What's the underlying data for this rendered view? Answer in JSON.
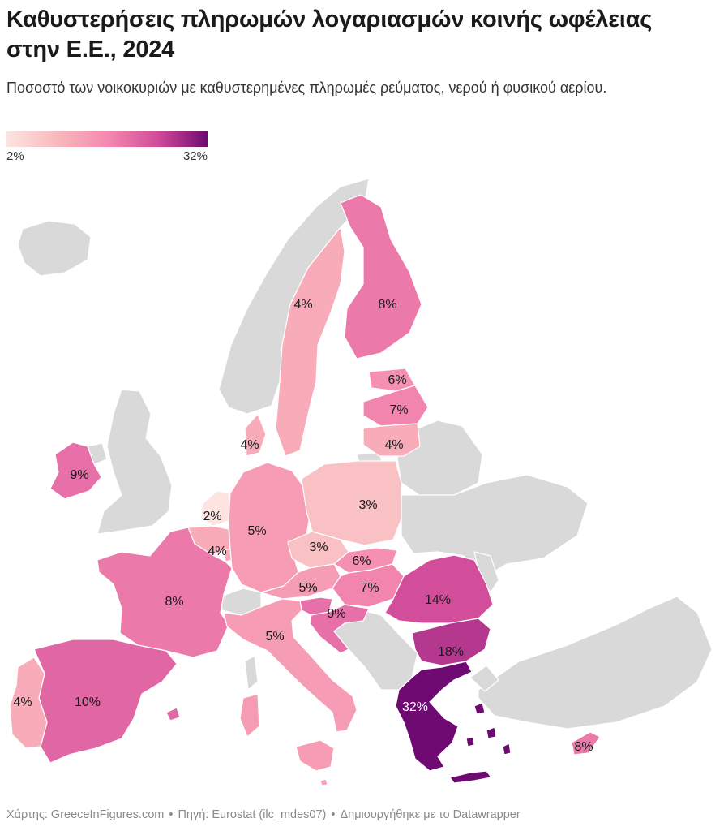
{
  "header": {
    "title": "Καθυστερήσεις πληρωμών λογαριασμών κοινής ωφέλειας στην Ε.Ε., 2024",
    "subtitle": "Ποσοστό των νοικοκυριών με καθυστερημένες πληρωμές ρεύματος, νερού ή φυσικού αερίου."
  },
  "legend": {
    "min_label": "2%",
    "max_label": "32%",
    "min_value": 2,
    "max_value": 32,
    "colors": [
      "#fde4e1",
      "#f9b9bd",
      "#f48ab0",
      "#d24c9a",
      "#6e0a72"
    ]
  },
  "map": {
    "no_data_color": "#d9d9d9",
    "countries": [
      {
        "id": "SE",
        "value": 4,
        "label": "4%"
      },
      {
        "id": "FI",
        "value": 8,
        "label": "8%"
      },
      {
        "id": "EE",
        "value": 6,
        "label": "6%"
      },
      {
        "id": "LV",
        "value": 7,
        "label": "7%"
      },
      {
        "id": "LT",
        "value": 4,
        "label": "4%"
      },
      {
        "id": "DK",
        "value": 4,
        "label": "4%"
      },
      {
        "id": "IE",
        "value": 9,
        "label": "9%"
      },
      {
        "id": "NL",
        "value": 2,
        "label": "2%"
      },
      {
        "id": "BE",
        "value": 4,
        "label": "4%"
      },
      {
        "id": "DE",
        "value": 5,
        "label": "5%"
      },
      {
        "id": "PL",
        "value": 3,
        "label": "3%"
      },
      {
        "id": "CZ",
        "value": 3,
        "label": "3%"
      },
      {
        "id": "SK",
        "value": 6,
        "label": "6%"
      },
      {
        "id": "AT",
        "value": 5,
        "label": "5%"
      },
      {
        "id": "HU",
        "value": 7,
        "label": "7%"
      },
      {
        "id": "SI",
        "value": 9,
        "label": "9%"
      },
      {
        "id": "HR",
        "value": 9,
        "label": "9%"
      },
      {
        "id": "FR",
        "value": 8,
        "label": "8%"
      },
      {
        "id": "IT",
        "value": 5,
        "label": "5%"
      },
      {
        "id": "ES",
        "value": 10,
        "label": "10%"
      },
      {
        "id": "PT",
        "value": 4,
        "label": "4%"
      },
      {
        "id": "RO",
        "value": 14,
        "label": "14%"
      },
      {
        "id": "BG",
        "value": 18,
        "label": "18%"
      },
      {
        "id": "EL",
        "value": 32,
        "label": "32%"
      },
      {
        "id": "CY",
        "value": 8,
        "label": "8%"
      },
      {
        "id": "LU",
        "value": 4,
        "label": ""
      },
      {
        "id": "MT",
        "value": 5,
        "label": ""
      }
    ]
  },
  "footer": {
    "map_credit": "Χάρτης: GreeceInFigures.com",
    "source": "Πηγή: Eurostat (ilc_mdes07)",
    "tool": "Δημιουργήθηκε με το Datawrapper"
  }
}
